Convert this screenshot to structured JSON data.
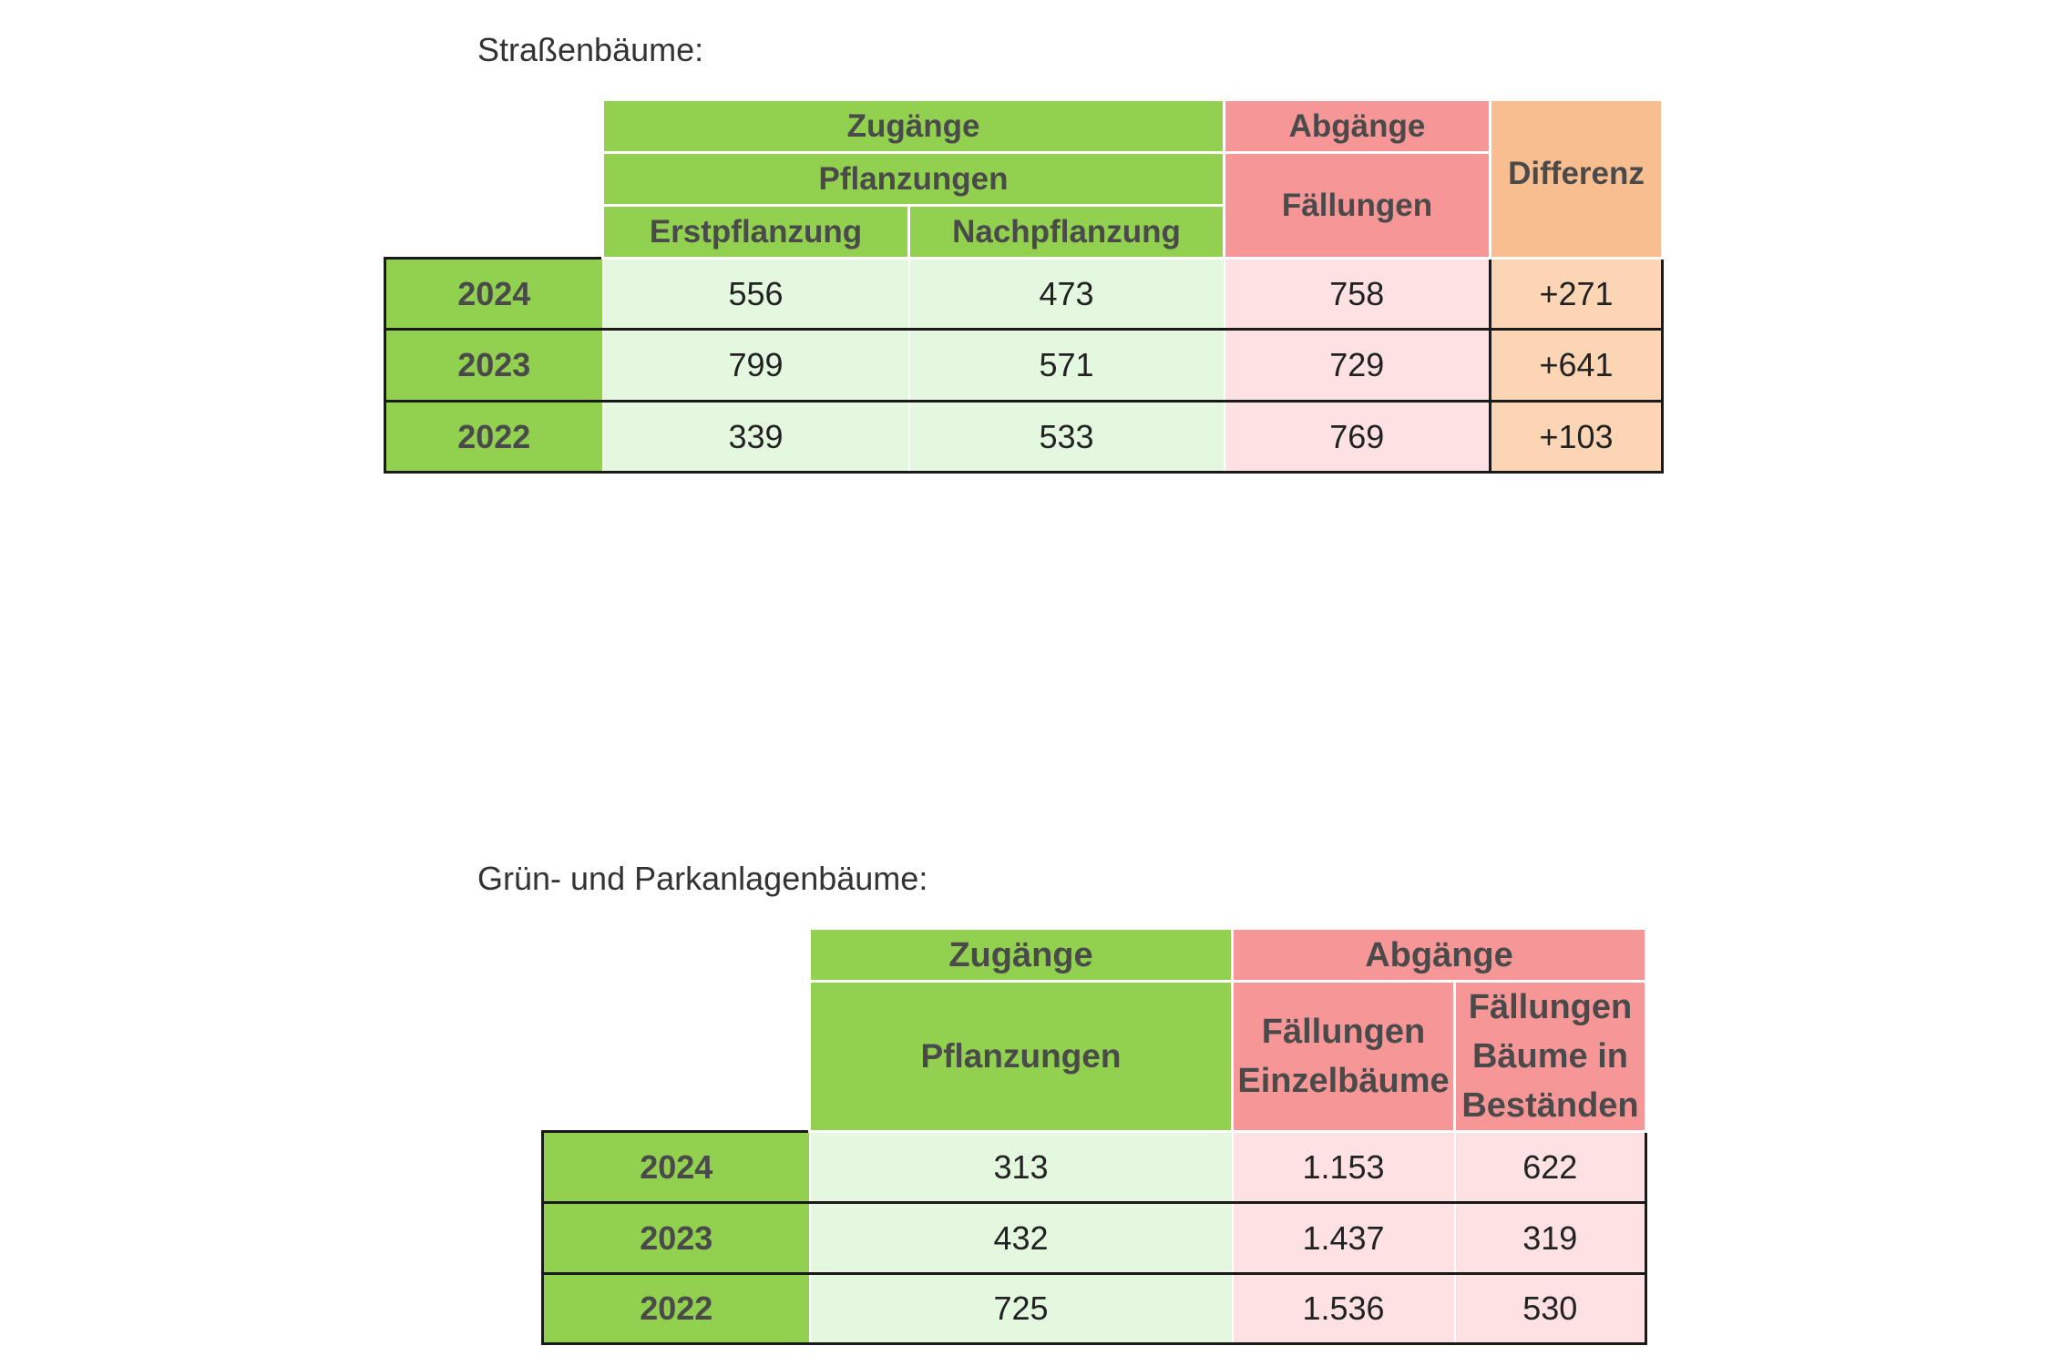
{
  "strassen": {
    "caption": "Straßenbäume:",
    "headers": {
      "zugaenge": "Zugänge",
      "pflanzungen": "Pflanzungen",
      "erstpflanzung": "Erstpflanzung",
      "nachpflanzung": "Nachpflanzung",
      "abgaenge": "Abgänge",
      "faellungen": "Fällungen",
      "differenz": "Differenz"
    },
    "rows": [
      {
        "year": "2024",
        "erst": "556",
        "nach": "473",
        "faell": "758",
        "diff": "+271"
      },
      {
        "year": "2023",
        "erst": "799",
        "nach": "571",
        "faell": "729",
        "diff": "+641"
      },
      {
        "year": "2022",
        "erst": "339",
        "nach": "533",
        "faell": "769",
        "diff": "+103"
      }
    ]
  },
  "park": {
    "caption": "Grün- und Parkanlagenbäume:",
    "headers": {
      "zugaenge": "Zugänge",
      "pflanzungen": "Pflanzungen",
      "abgaenge": "Abgänge",
      "faellungen_einzel": "Fällungen Einzelbäume",
      "faellungen_bestand": "Fällungen Bäume in Beständen"
    },
    "rows": [
      {
        "year": "2024",
        "pflanz": "313",
        "einzel": "1.153",
        "bestand": "622"
      },
      {
        "year": "2023",
        "pflanz": "432",
        "einzel": "1.437",
        "bestand": "319"
      },
      {
        "year": "2022",
        "pflanz": "725",
        "einzel": "1.536",
        "bestand": "530"
      }
    ]
  }
}
